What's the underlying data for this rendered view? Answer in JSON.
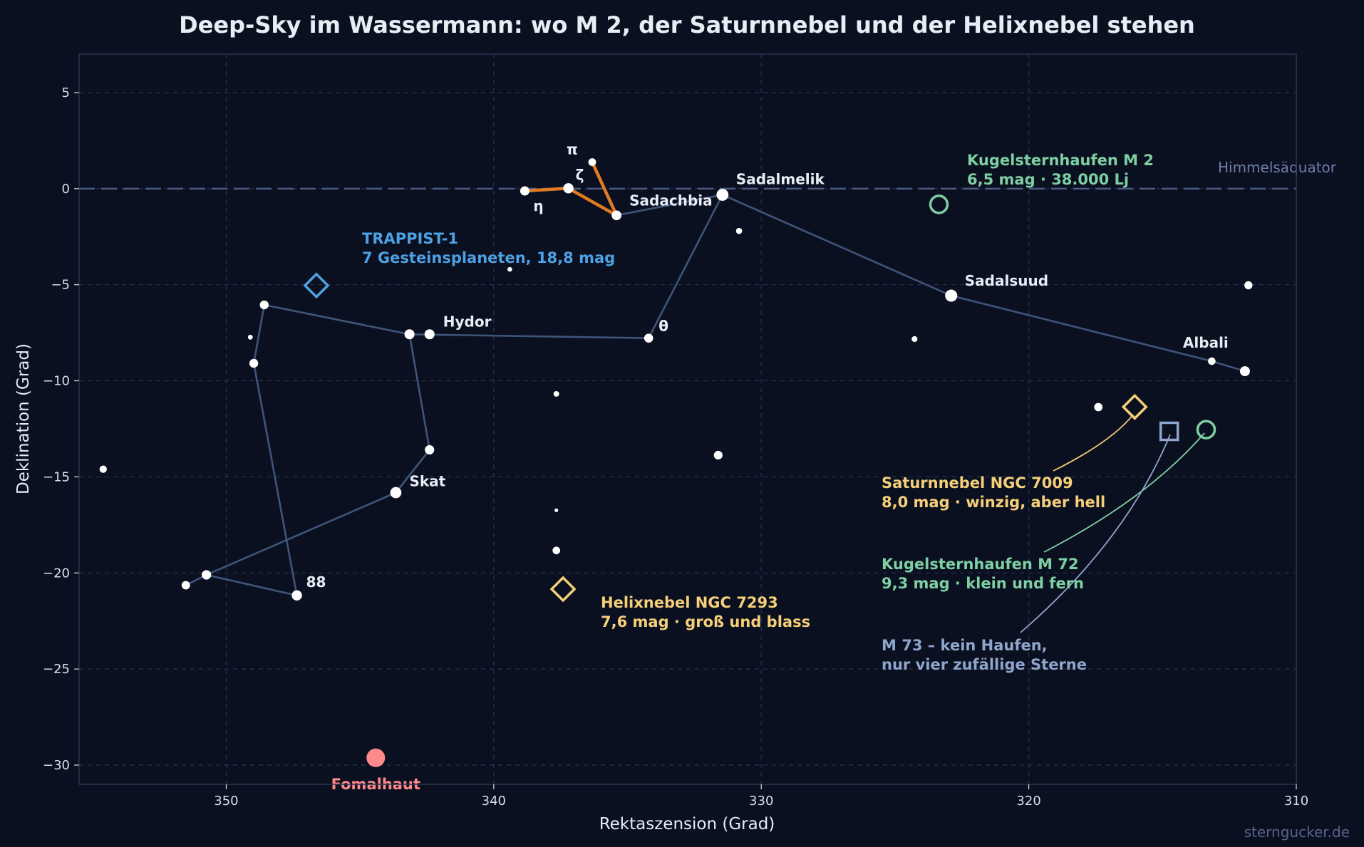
{
  "title": "Deep-Sky im Wassermann: wo M 2, der Saturnnebel und der Helixnebel stehen",
  "watermark": "sterngucker.de",
  "colors": {
    "background": "#0b1020",
    "axes_frame": "#2a3350",
    "grid": "#2a3350",
    "constellation_line": "#3e5578",
    "asterism": "#e07b22",
    "star": "#ffffff",
    "planetary_nebula": "#f6cf79",
    "globular_cluster": "#7ecfa4",
    "asterism_m73": "#8fa6cc",
    "exoplanet_system": "#4ea1e3",
    "fomalhaut": "#ff8a8a",
    "equator": "#4a5a85",
    "text": "#e8ecf5",
    "tick_text": "#d8deea"
  },
  "chart_data": {
    "type": "scatter",
    "title": "Deep-Sky im Wassermann: wo M 2, der Saturnnebel und der Helixnebel stehen",
    "xlabel": "Rektaszension (Grad)",
    "ylabel": "Deklination (Grad)",
    "xlim": [
      355.5,
      310
    ],
    "ylim": [
      -31,
      7
    ],
    "x_inverted": true,
    "x_ticks": [
      350,
      340,
      330,
      320,
      310
    ],
    "y_ticks": [
      5,
      0,
      -5,
      -10,
      -15,
      -20,
      -25,
      -30
    ],
    "grid": true,
    "equator": {
      "dec": 0,
      "label": "Himmelsäquator"
    },
    "stars": [
      {
        "id": "sadalmelik",
        "ra": 331.45,
        "dec": -0.32,
        "mag": 2.95,
        "label": "Sadalmelik"
      },
      {
        "id": "sadalsuud",
        "ra": 322.9,
        "dec": -5.57,
        "mag": 2.9,
        "label": "Sadalsuud"
      },
      {
        "id": "skat",
        "ra": 343.66,
        "dec": -15.82,
        "mag": 3.27,
        "label": "Skat"
      },
      {
        "id": "hydor",
        "ra": 342.4,
        "dec": -7.58,
        "mag": 3.74,
        "label": "Hydor"
      },
      {
        "id": "albali",
        "ra": 311.92,
        "dec": -9.5,
        "mag": 3.77,
        "label": "Albali"
      },
      {
        "id": "sadachbia",
        "ra": 335.41,
        "dec": -1.39,
        "mag": 3.84,
        "label": "Sadachbia"
      },
      {
        "id": "zeta",
        "ra": 337.21,
        "dec": 0.02,
        "mag": 3.65,
        "label": "ζ"
      },
      {
        "id": "eta",
        "ra": 338.84,
        "dec": -0.12,
        "mag": 4.04,
        "label": "η"
      },
      {
        "id": "pi",
        "ra": 336.32,
        "dec": 1.38,
        "mag": 4.66,
        "label": "π"
      },
      {
        "id": "theta",
        "ra": 334.21,
        "dec": -7.78,
        "mag": 4.16,
        "label": "θ"
      },
      {
        "id": "s88",
        "ra": 347.36,
        "dec": -21.17,
        "mag": 3.66,
        "label": "88"
      },
      {
        "id": "lambda",
        "ra": 343.15,
        "dec": -7.58,
        "mag": 3.74,
        "label": ""
      },
      {
        "id": "phi",
        "ra": 348.58,
        "dec": -6.05,
        "mag": 4.22,
        "label": ""
      },
      {
        "id": "psi1",
        "ra": 348.97,
        "dec": -9.09,
        "mag": 4.21,
        "label": ""
      },
      {
        "id": "tau",
        "ra": 342.4,
        "dec": -13.59,
        "mag": 4.01,
        "label": ""
      },
      {
        "id": "s98",
        "ra": 350.74,
        "dec": -20.1,
        "mag": 3.97,
        "label": ""
      },
      {
        "id": "s99",
        "ra": 351.51,
        "dec": -20.64,
        "mag": 4.39,
        "label": ""
      },
      {
        "id": "iota",
        "ra": 331.61,
        "dec": -13.87,
        "mag": 4.27,
        "label": ""
      },
      {
        "id": "mu",
        "ra": 313.16,
        "dec": -8.98,
        "mag": 4.73,
        "label": ""
      },
      {
        "id": "nu",
        "ra": 311.79,
        "dec": -5.03,
        "mag": 4.5,
        "label": ""
      },
      {
        "id": "s32",
        "ra": 330.83,
        "dec": -2.2,
        "mag": 5.3,
        "label": ""
      },
      {
        "id": "s3",
        "ra": 317.4,
        "dec": -11.37,
        "mag": 4.4,
        "label": ""
      },
      {
        "id": "s6",
        "ra": 324.27,
        "dec": -7.83,
        "mag": 5.4,
        "label": ""
      },
      {
        "id": "s66",
        "ra": 337.66,
        "dec": -18.83,
        "mag": 4.7,
        "label": ""
      },
      {
        "id": "s53",
        "ra": 337.66,
        "dec": -16.74,
        "mag": 6.3,
        "label": ""
      },
      {
        "id": "s107",
        "ra": 354.6,
        "dec": -14.6,
        "mag": 4.8,
        "label": ""
      },
      {
        "id": "s52",
        "ra": 339.4,
        "dec": -4.2,
        "mag": 5.9,
        "label": ""
      },
      {
        "id": "s64",
        "ra": 337.66,
        "dec": -10.68,
        "mag": 5.5,
        "label": ""
      },
      {
        "id": "s91",
        "ra": 349.1,
        "dec": -7.73,
        "mag": 5.8,
        "label": ""
      }
    ],
    "constellation_lines": [
      [
        "albali",
        "mu",
        "sadalsuud",
        "sadalmelik",
        "sadachbia"
      ],
      [
        "sadalmelik",
        "theta",
        "lambda",
        "phi",
        "psi1",
        "s88",
        "s98",
        "s99"
      ],
      [
        "s98",
        "skat",
        "tau",
        "lambda"
      ]
    ],
    "water_jar": [
      "eta",
      "zeta",
      "sadachbia",
      "pi"
    ],
    "deep_sky": [
      {
        "id": "m2",
        "kind": "globular_cluster",
        "ra": 323.36,
        "dec": -0.82,
        "name": "Kugelsternhaufen M 2",
        "info": "6,5 mag · 38.000 Lj"
      },
      {
        "id": "m72",
        "kind": "globular_cluster",
        "ra": 313.37,
        "dec": -12.54,
        "name": "Kugelsternhaufen M 72",
        "info": "9,3 mag · klein und fern"
      },
      {
        "id": "ngc7009",
        "kind": "planetary_nebula",
        "ra": 316.04,
        "dec": -11.36,
        "name": "Saturnnebel NGC 7009",
        "info": "8,0 mag · winzig, aber hell"
      },
      {
        "id": "ngc7293",
        "kind": "planetary_nebula",
        "ra": 337.41,
        "dec": -20.84,
        "name": "Helixnebel NGC 7293",
        "info": "7,6 mag · groß und blass"
      },
      {
        "id": "m73",
        "kind": "asterism",
        "ra": 314.75,
        "dec": -12.63,
        "name": "M 73 – kein Haufen,",
        "info": "nur vier zufällige Sterne"
      },
      {
        "id": "trappist1",
        "kind": "exoplanet_system",
        "ra": 346.63,
        "dec": -5.04,
        "name": "TRAPPIST-1",
        "info": "7 Gesteinsplaneten, 18,8 mag"
      }
    ],
    "highlight_star": {
      "ra": 344.41,
      "dec": -29.62,
      "name": "Fomalhaut"
    }
  }
}
